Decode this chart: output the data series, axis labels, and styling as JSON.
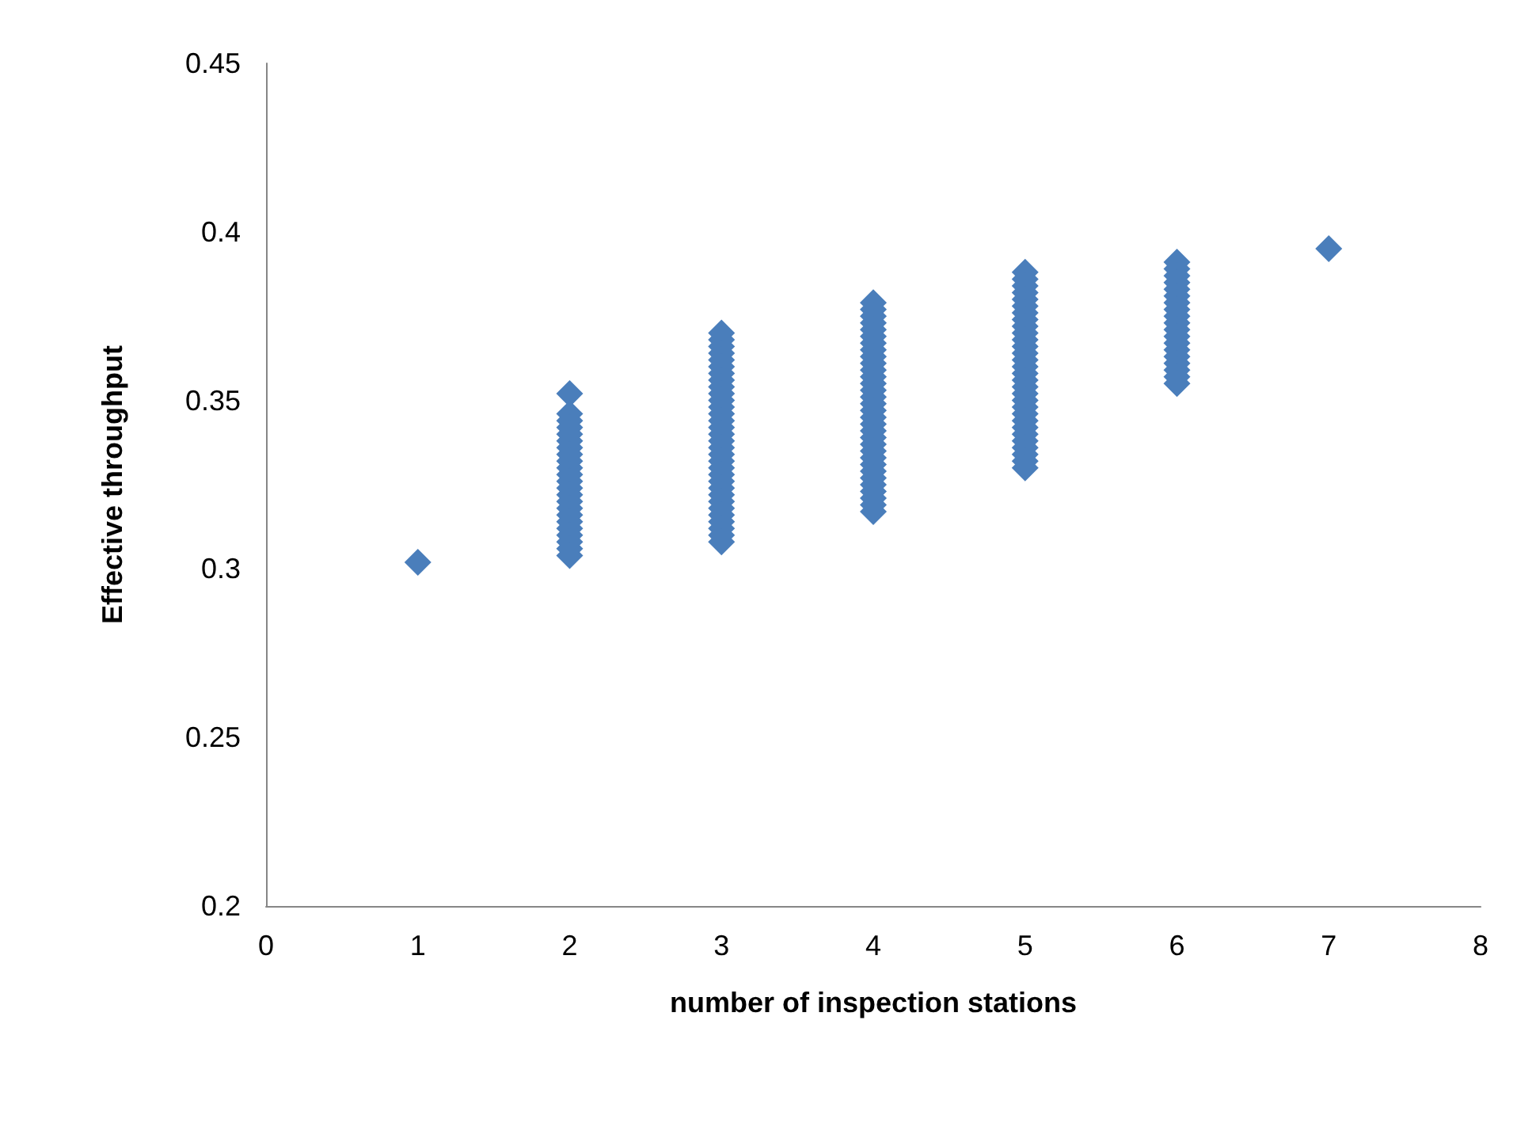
{
  "chart_data": {
    "type": "scatter",
    "xlabel": "number of inspection stations",
    "ylabel": "Effective throughput",
    "xlim": [
      0,
      8
    ],
    "xticks": [
      0,
      1,
      2,
      3,
      4,
      5,
      6,
      7,
      8
    ],
    "ylim": [
      0.2,
      0.45
    ],
    "yticks": [
      0.2,
      0.25,
      0.3,
      0.35,
      0.4,
      0.45
    ],
    "marker": "diamond",
    "series": [
      {
        "color": "#4a7ebb",
        "x": [
          1,
          2,
          2,
          2,
          2,
          2,
          2,
          2,
          2,
          2,
          2,
          2,
          2,
          2,
          2,
          2,
          2,
          2,
          2,
          2,
          2,
          2,
          2,
          2,
          3,
          3,
          3,
          3,
          3,
          3,
          3,
          3,
          3,
          3,
          3,
          3,
          3,
          3,
          3,
          3,
          3,
          3,
          3,
          3,
          3,
          3,
          3,
          3,
          3,
          3,
          3,
          3,
          3,
          3,
          3,
          3,
          4,
          4,
          4,
          4,
          4,
          4,
          4,
          4,
          4,
          4,
          4,
          4,
          4,
          4,
          4,
          4,
          4,
          4,
          4,
          4,
          4,
          4,
          4,
          4,
          4,
          4,
          4,
          4,
          4,
          4,
          4,
          4,
          5,
          5,
          5,
          5,
          5,
          5,
          5,
          5,
          5,
          5,
          5,
          5,
          5,
          5,
          5,
          5,
          5,
          5,
          5,
          5,
          5,
          5,
          5,
          5,
          5,
          5,
          5,
          5,
          5,
          5,
          6,
          6,
          6,
          6,
          6,
          6,
          6,
          6,
          6,
          6,
          6,
          6,
          6,
          6,
          6,
          6,
          6,
          6,
          6,
          7
        ],
        "values": [
          0.302,
          0.352,
          0.346,
          0.344,
          0.342,
          0.34,
          0.338,
          0.336,
          0.334,
          0.332,
          0.33,
          0.328,
          0.326,
          0.324,
          0.322,
          0.32,
          0.318,
          0.316,
          0.314,
          0.312,
          0.31,
          0.308,
          0.306,
          0.304,
          0.37,
          0.368,
          0.366,
          0.364,
          0.362,
          0.36,
          0.358,
          0.356,
          0.354,
          0.352,
          0.35,
          0.348,
          0.346,
          0.344,
          0.342,
          0.34,
          0.338,
          0.336,
          0.334,
          0.332,
          0.33,
          0.328,
          0.326,
          0.324,
          0.322,
          0.32,
          0.318,
          0.316,
          0.314,
          0.312,
          0.31,
          0.308,
          0.379,
          0.377,
          0.375,
          0.373,
          0.371,
          0.369,
          0.367,
          0.365,
          0.363,
          0.361,
          0.359,
          0.357,
          0.355,
          0.353,
          0.351,
          0.349,
          0.347,
          0.345,
          0.343,
          0.341,
          0.339,
          0.337,
          0.335,
          0.333,
          0.331,
          0.329,
          0.327,
          0.325,
          0.323,
          0.321,
          0.319,
          0.317,
          0.388,
          0.386,
          0.384,
          0.382,
          0.38,
          0.378,
          0.376,
          0.374,
          0.372,
          0.37,
          0.368,
          0.366,
          0.364,
          0.362,
          0.36,
          0.358,
          0.356,
          0.354,
          0.352,
          0.35,
          0.348,
          0.346,
          0.344,
          0.342,
          0.34,
          0.338,
          0.336,
          0.334,
          0.332,
          0.33,
          0.391,
          0.389,
          0.387,
          0.385,
          0.383,
          0.381,
          0.379,
          0.377,
          0.375,
          0.373,
          0.371,
          0.369,
          0.367,
          0.365,
          0.363,
          0.361,
          0.359,
          0.357,
          0.355,
          0.395
        ]
      }
    ]
  }
}
